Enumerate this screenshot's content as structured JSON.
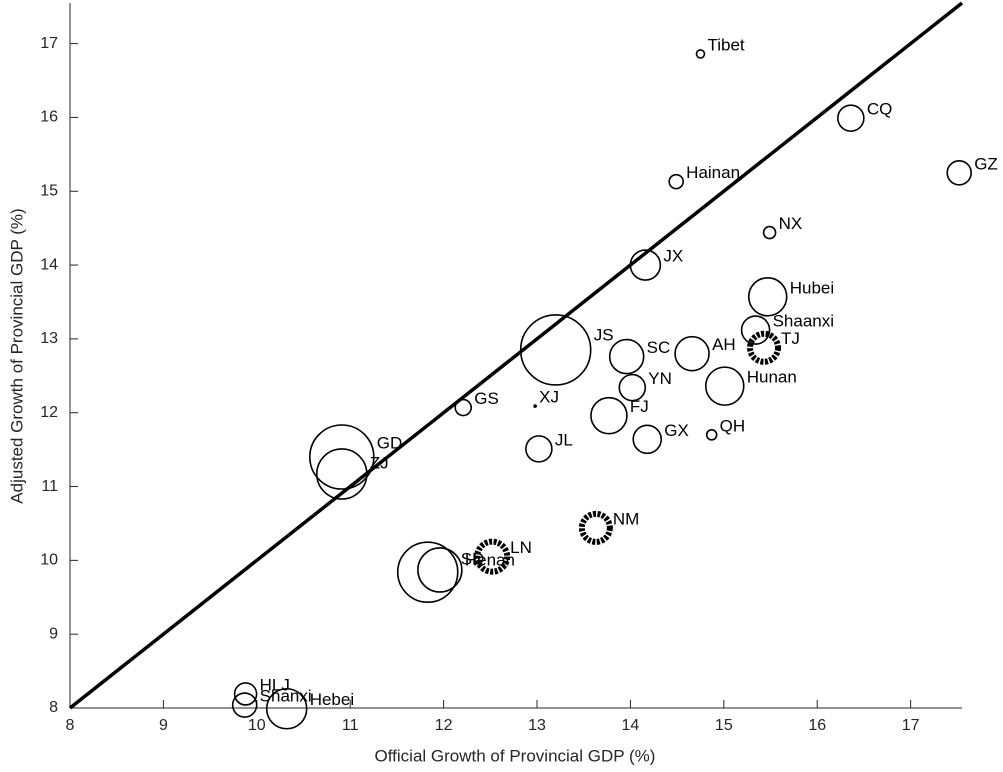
{
  "chart_data": {
    "type": "scatter",
    "x_label": "Official Growth of Provincial GDP (%)",
    "y_label": "Adjusted Growth of Provincial GDP (%)",
    "labels": [
      "Tibet",
      "CQ",
      "GZ",
      "Hainan",
      "NX",
      "JX",
      "Hubei",
      "Shaanxi",
      "TJ",
      "JS",
      "SC",
      "AH",
      "Hunan",
      "YN",
      "GS",
      "XJ",
      "FJ",
      "GX",
      "QH",
      "JL",
      "GD",
      "ZJ",
      "NM",
      "LN",
      "SD",
      "Henan",
      "HLJ",
      "Shanxi",
      "Hebei"
    ],
    "x": [
      14.75,
      16.36,
      17.52,
      14.49,
      15.49,
      14.16,
      15.47,
      15.34,
      15.43,
      13.2,
      13.96,
      14.66,
      15.01,
      14.02,
      12.21,
      12.98,
      13.77,
      14.18,
      14.87,
      13.02,
      10.91,
      10.91,
      13.63,
      12.52,
      11.83,
      11.96,
      9.88,
      9.87,
      10.32
    ],
    "values": [
      16.86,
      15.99,
      15.25,
      15.13,
      14.44,
      14.0,
      13.57,
      13.12,
      12.88,
      12.85,
      12.76,
      12.8,
      12.36,
      12.34,
      12.07,
      12.09,
      11.96,
      11.64,
      11.7,
      11.51,
      11.4,
      11.17,
      10.44,
      10.05,
      9.84,
      9.87,
      8.19,
      8.04,
      7.99
    ],
    "sizes": [
      4,
      13,
      12,
      7,
      6,
      15,
      19,
      14,
      14,
      35,
      17,
      17,
      19,
      13,
      8,
      1,
      18,
      14,
      5,
      13,
      32,
      25,
      14,
      15,
      30,
      22,
      11,
      12,
      20
    ],
    "highlighted": [
      false,
      false,
      false,
      false,
      false,
      false,
      false,
      false,
      true,
      false,
      false,
      false,
      false,
      false,
      false,
      false,
      false,
      false,
      false,
      false,
      false,
      false,
      true,
      true,
      false,
      false,
      false,
      false,
      false
    ],
    "xlim": [
      8,
      17.55
    ],
    "ylim": [
      8,
      17.55
    ],
    "xticks": [
      8,
      9,
      10,
      11,
      12,
      13,
      14,
      15,
      16,
      17
    ],
    "yticks": [
      8,
      9,
      10,
      11,
      12,
      13,
      14,
      15,
      16,
      17
    ],
    "diagonal": true
  }
}
